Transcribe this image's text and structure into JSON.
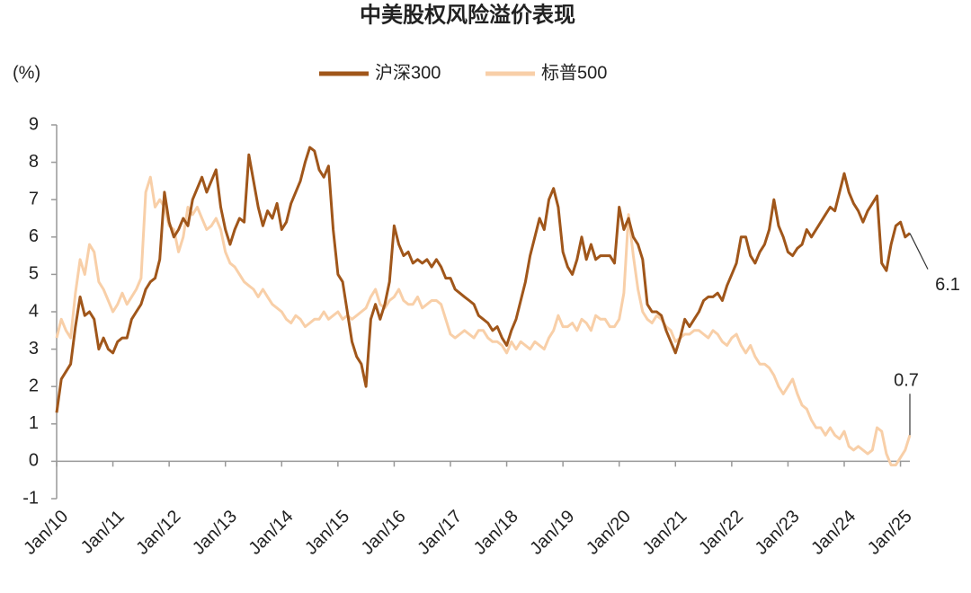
{
  "chart_data": {
    "type": "line",
    "title": "中美股权风险溢价表现",
    "y_label": "(%)",
    "categories": [
      "Jan/10",
      null,
      null,
      null,
      null,
      null,
      null,
      null,
      null,
      null,
      null,
      null,
      "Jan/11",
      null,
      null,
      null,
      null,
      null,
      null,
      null,
      null,
      null,
      null,
      null,
      "Jan/12",
      null,
      null,
      null,
      null,
      null,
      null,
      null,
      null,
      null,
      null,
      null,
      "Jan/13",
      null,
      null,
      null,
      null,
      null,
      null,
      null,
      null,
      null,
      null,
      null,
      "Jan/14",
      null,
      null,
      null,
      null,
      null,
      null,
      null,
      null,
      null,
      null,
      null,
      "Jan/15",
      null,
      null,
      null,
      null,
      null,
      null,
      null,
      null,
      null,
      null,
      null,
      "Jan/16",
      null,
      null,
      null,
      null,
      null,
      null,
      null,
      null,
      null,
      null,
      null,
      "Jan/17",
      null,
      null,
      null,
      null,
      null,
      null,
      null,
      null,
      null,
      null,
      null,
      "Jan/18",
      null,
      null,
      null,
      null,
      null,
      null,
      null,
      null,
      null,
      null,
      null,
      "Jan/19",
      null,
      null,
      null,
      null,
      null,
      null,
      null,
      null,
      null,
      null,
      null,
      "Jan/20",
      null,
      null,
      null,
      null,
      null,
      null,
      null,
      null,
      null,
      null,
      null,
      "Jan/21",
      null,
      null,
      null,
      null,
      null,
      null,
      null,
      null,
      null,
      null,
      null,
      "Jan/22",
      null,
      null,
      null,
      null,
      null,
      null,
      null,
      null,
      null,
      null,
      null,
      "Jan/23",
      null,
      null,
      null,
      null,
      null,
      null,
      null,
      null,
      null,
      null,
      null,
      "Jan/24",
      null,
      null,
      null,
      null,
      null,
      null,
      null,
      null,
      null,
      null,
      null,
      "Jan/25",
      null,
      null
    ],
    "series": [
      {
        "name": "沪深300",
        "color": "#a0561a",
        "values": [
          1.3,
          2.2,
          2.4,
          2.6,
          3.6,
          4.4,
          3.9,
          4.0,
          3.8,
          3.0,
          3.3,
          3.0,
          2.9,
          3.2,
          3.3,
          3.3,
          3.8,
          4.0,
          4.2,
          4.6,
          4.8,
          4.9,
          5.4,
          7.2,
          6.4,
          6.0,
          6.2,
          6.5,
          6.3,
          7.0,
          7.3,
          7.6,
          7.2,
          7.5,
          7.8,
          6.8,
          6.2,
          5.8,
          6.2,
          6.5,
          6.4,
          8.2,
          7.5,
          6.8,
          6.3,
          6.7,
          6.5,
          6.9,
          6.2,
          6.4,
          6.9,
          7.2,
          7.5,
          8.0,
          8.4,
          8.3,
          7.8,
          7.6,
          7.9,
          6.2,
          5.0,
          4.8,
          4.0,
          3.2,
          2.8,
          2.6,
          2.0,
          3.8,
          4.2,
          3.8,
          4.2,
          4.8,
          6.3,
          5.8,
          5.5,
          5.6,
          5.3,
          5.4,
          5.3,
          5.4,
          5.2,
          5.4,
          5.2,
          4.9,
          4.9,
          4.6,
          4.5,
          4.4,
          4.3,
          4.2,
          3.9,
          3.8,
          3.7,
          3.5,
          3.6,
          3.3,
          3.1,
          3.5,
          3.8,
          4.3,
          4.8,
          5.5,
          6.0,
          6.5,
          6.2,
          7.0,
          7.3,
          6.8,
          5.6,
          5.2,
          5.0,
          5.4,
          6.0,
          5.4,
          5.8,
          5.4,
          5.5,
          5.5,
          5.5,
          5.3,
          6.8,
          6.2,
          6.5,
          6.0,
          5.8,
          5.4,
          4.2,
          4.0,
          4.0,
          3.9,
          3.5,
          3.2,
          2.9,
          3.3,
          3.8,
          3.6,
          3.8,
          4.0,
          4.3,
          4.4,
          4.4,
          4.5,
          4.3,
          4.7,
          5.0,
          5.3,
          6.0,
          6.0,
          5.5,
          5.3,
          5.6,
          5.8,
          6.2,
          7.0,
          6.3,
          6.0,
          5.6,
          5.5,
          5.7,
          5.8,
          6.2,
          6.0,
          6.2,
          6.4,
          6.6,
          6.8,
          6.7,
          7.2,
          7.7,
          7.2,
          6.9,
          6.7,
          6.4,
          6.7,
          6.9,
          7.1,
          5.3,
          5.1,
          5.8,
          6.3,
          6.4,
          6.0,
          6.1
        ]
      },
      {
        "name": "标普500",
        "color": "#f8cfa8",
        "values": [
          3.3,
          3.8,
          3.5,
          3.3,
          4.5,
          5.4,
          5.0,
          5.8,
          5.6,
          4.8,
          4.6,
          4.3,
          4.0,
          4.2,
          4.5,
          4.2,
          4.4,
          4.6,
          4.9,
          7.2,
          7.6,
          6.8,
          7.0,
          6.8,
          6.3,
          6.2,
          5.6,
          6.0,
          6.8,
          6.6,
          6.8,
          6.5,
          6.2,
          6.3,
          6.5,
          6.2,
          5.6,
          5.3,
          5.2,
          5.0,
          4.8,
          4.7,
          4.6,
          4.4,
          4.6,
          4.4,
          4.2,
          4.1,
          4.0,
          3.8,
          3.7,
          3.9,
          3.8,
          3.6,
          3.7,
          3.8,
          3.8,
          4.0,
          3.8,
          3.9,
          4.0,
          3.8,
          3.9,
          3.8,
          3.9,
          4.0,
          4.1,
          4.4,
          4.6,
          4.2,
          4.1,
          4.3,
          4.4,
          4.6,
          4.3,
          4.2,
          4.2,
          4.4,
          4.1,
          4.2,
          4.3,
          4.3,
          4.2,
          3.8,
          3.4,
          3.3,
          3.4,
          3.5,
          3.4,
          3.3,
          3.5,
          3.5,
          3.3,
          3.2,
          3.2,
          3.1,
          2.9,
          3.2,
          3.0,
          3.2,
          3.1,
          3.0,
          3.2,
          3.1,
          3.0,
          3.3,
          3.5,
          3.9,
          3.6,
          3.6,
          3.7,
          3.5,
          3.8,
          3.7,
          3.5,
          3.9,
          3.8,
          3.8,
          3.6,
          3.6,
          3.8,
          4.5,
          6.6,
          5.5,
          4.6,
          4.0,
          3.8,
          3.7,
          3.9,
          3.8,
          3.6,
          3.5,
          3.2,
          3.3,
          3.4,
          3.4,
          3.5,
          3.5,
          3.4,
          3.3,
          3.5,
          3.4,
          3.2,
          3.1,
          3.3,
          3.4,
          3.1,
          2.9,
          3.1,
          2.8,
          2.6,
          2.6,
          2.5,
          2.3,
          2.0,
          1.8,
          2.0,
          2.2,
          1.8,
          1.5,
          1.4,
          1.1,
          0.9,
          0.9,
          0.7,
          0.9,
          0.7,
          0.6,
          0.8,
          0.4,
          0.3,
          0.4,
          0.3,
          0.2,
          0.3,
          0.9,
          0.8,
          0.2,
          -0.1,
          -0.1,
          0.1,
          0.3,
          0.7
        ]
      }
    ],
    "annotations": [
      {
        "text": "6.1"
      },
      {
        "text": "0.7"
      }
    ],
    "ylim": [
      -1,
      9
    ],
    "yticks": [
      -1,
      0,
      1,
      2,
      3,
      4,
      5,
      6,
      7,
      8,
      9
    ]
  }
}
